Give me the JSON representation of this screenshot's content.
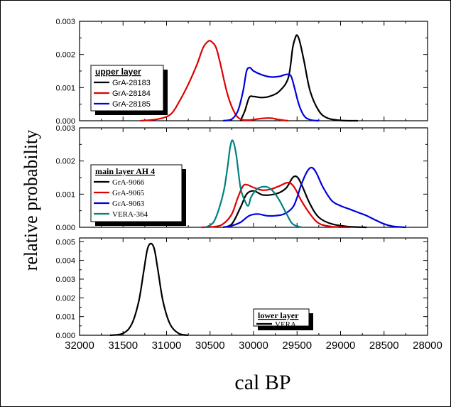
{
  "chart_data": [
    {
      "type": "line",
      "panel": "top",
      "xlim": [
        32000,
        28000
      ],
      "ylim": [
        0,
        0.003
      ],
      "yticks": [
        "0.000",
        "0.001",
        "0.002",
        "0.003"
      ],
      "legend": {
        "title": "upper layer",
        "placement": "top-left"
      },
      "series": [
        {
          "name": "GrA-28183",
          "color": "#000000",
          "points": [
            [
              30150,
              0
            ],
            [
              30100,
              0.0003
            ],
            [
              30050,
              0.0007
            ],
            [
              30000,
              0.00073
            ],
            [
              29900,
              0.0007
            ],
            [
              29800,
              0.00075
            ],
            [
              29700,
              0.0009
            ],
            [
              29600,
              0.0013
            ],
            [
              29550,
              0.0022
            ],
            [
              29520,
              0.0025
            ],
            [
              29500,
              0.00258
            ],
            [
              29470,
              0.0024
            ],
            [
              29420,
              0.0018
            ],
            [
              29350,
              0.0009
            ],
            [
              29250,
              0.0003
            ],
            [
              29150,
              8e-05
            ],
            [
              29000,
              1e-05
            ],
            [
              28800,
              0
            ]
          ]
        },
        {
          "name": "GrA-28184",
          "color": "#e00000",
          "points": [
            [
              31300,
              0
            ],
            [
              31100,
              5e-05
            ],
            [
              30950,
              0.0002
            ],
            [
              30850,
              0.0006
            ],
            [
              30750,
              0.0011
            ],
            [
              30650,
              0.0017
            ],
            [
              30580,
              0.0022
            ],
            [
              30520,
              0.0024
            ],
            [
              30480,
              0.00238
            ],
            [
              30430,
              0.0022
            ],
            [
              30380,
              0.0017
            ],
            [
              30300,
              0.0008
            ],
            [
              30220,
              0.00025
            ],
            [
              30150,
              5e-05
            ],
            [
              30050,
              2e-05
            ],
            [
              29900,
              7e-05
            ],
            [
              29800,
              8e-05
            ],
            [
              29700,
              3e-05
            ],
            [
              29600,
              0
            ]
          ]
        },
        {
          "name": "GrA-28185",
          "color": "#0000e0",
          "points": [
            [
              30350,
              0
            ],
            [
              30250,
              5e-05
            ],
            [
              30180,
              0.0003
            ],
            [
              30120,
              0.0009
            ],
            [
              30080,
              0.0015
            ],
            [
              30040,
              0.0016
            ],
            [
              30000,
              0.0015
            ],
            [
              29900,
              0.00138
            ],
            [
              29800,
              0.00132
            ],
            [
              29700,
              0.00134
            ],
            [
              29620,
              0.0014
            ],
            [
              29570,
              0.00135
            ],
            [
              29530,
              0.001
            ],
            [
              29480,
              0.0005
            ],
            [
              29420,
              0.00015
            ],
            [
              29350,
              3e-05
            ],
            [
              29250,
              0
            ]
          ]
        }
      ]
    },
    {
      "type": "line",
      "panel": "middle",
      "xlim": [
        32000,
        28000
      ],
      "ylim": [
        0,
        0.003
      ],
      "yticks": [
        "0.000",
        "0.001",
        "0.002",
        "0.003"
      ],
      "legend": {
        "title": "main layer AH 4",
        "placement": "top-left"
      },
      "series": [
        {
          "name": "GrA-9066",
          "color": "#000000",
          "points": [
            [
              30350,
              0
            ],
            [
              30250,
              0.0001
            ],
            [
              30150,
              0.0006
            ],
            [
              30080,
              0.001
            ],
            [
              30000,
              0.0011
            ],
            [
              29900,
              0.00098
            ],
            [
              29800,
              0.00098
            ],
            [
              29700,
              0.00105
            ],
            [
              29620,
              0.0012
            ],
            [
              29550,
              0.0015
            ],
            [
              29500,
              0.00152
            ],
            [
              29450,
              0.0013
            ],
            [
              29350,
              0.0007
            ],
            [
              29250,
              0.0003
            ],
            [
              29100,
              0.0001
            ],
            [
              28900,
              2e-05
            ],
            [
              28700,
              0
            ]
          ]
        },
        {
          "name": "GrA-9065",
          "color": "#e00000",
          "points": [
            [
              30600,
              0
            ],
            [
              30450,
              2e-05
            ],
            [
              30350,
              0.0001
            ],
            [
              30250,
              0.0004
            ],
            [
              30180,
              0.0009
            ],
            [
              30120,
              0.00125
            ],
            [
              30070,
              0.00128
            ],
            [
              30000,
              0.0012
            ],
            [
              29900,
              0.00112
            ],
            [
              29800,
              0.00115
            ],
            [
              29700,
              0.00125
            ],
            [
              29600,
              0.00135
            ],
            [
              29530,
              0.0012
            ],
            [
              29450,
              0.0008
            ],
            [
              29350,
              0.0004
            ],
            [
              29250,
              0.00012
            ],
            [
              29100,
              2e-05
            ],
            [
              28900,
              0
            ]
          ]
        },
        {
          "name": "GrA-9063",
          "color": "#0000e0",
          "points": [
            [
              30350,
              0
            ],
            [
              30250,
              5e-05
            ],
            [
              30150,
              0.00015
            ],
            [
              30050,
              0.00035
            ],
            [
              29950,
              0.0004
            ],
            [
              29850,
              0.00035
            ],
            [
              29750,
              0.00035
            ],
            [
              29650,
              0.0004
            ],
            [
              29550,
              0.0006
            ],
            [
              29500,
              0.0009
            ],
            [
              29450,
              0.0013
            ],
            [
              29380,
              0.0017
            ],
            [
              29330,
              0.0018
            ],
            [
              29280,
              0.00165
            ],
            [
              29200,
              0.0012
            ],
            [
              29100,
              0.0008
            ],
            [
              29000,
              0.00065
            ],
            [
              28900,
              0.00055
            ],
            [
              28800,
              0.00045
            ],
            [
              28700,
              0.00035
            ],
            [
              28600,
              0.00022
            ],
            [
              28500,
              0.0001
            ],
            [
              28400,
              3e-05
            ],
            [
              28250,
              0
            ]
          ]
        },
        {
          "name": "VERA-364",
          "color": "#008080",
          "points": [
            [
              30550,
              0
            ],
            [
              30450,
              0.0002
            ],
            [
              30350,
              0.001
            ],
            [
              30300,
              0.0018
            ],
            [
              30270,
              0.0024
            ],
            [
              30240,
              0.00262
            ],
            [
              30200,
              0.0022
            ],
            [
              30150,
              0.0012
            ],
            [
              30100,
              0.0008
            ],
            [
              30060,
              0.00065
            ],
            [
              30030,
              0.0009
            ],
            [
              29980,
              0.0011
            ],
            [
              29930,
              0.0012
            ],
            [
              29850,
              0.00122
            ],
            [
              29780,
              0.0011
            ],
            [
              29700,
              0.0008
            ],
            [
              29620,
              0.0004
            ],
            [
              29550,
              0.0001
            ],
            [
              29450,
              0
            ]
          ]
        }
      ]
    },
    {
      "type": "line",
      "panel": "bottom",
      "xlim": [
        32000,
        28000
      ],
      "ylim": [
        0,
        0.0052
      ],
      "yticks": [
        "0.000",
        "0.001",
        "0.002",
        "0.003",
        "0.004",
        "0.005"
      ],
      "legend": {
        "title": "lower layer",
        "placement": "bottom-right"
      },
      "series": [
        {
          "name": "VERA",
          "color": "#000000",
          "points": [
            [
              31650,
              0
            ],
            [
              31500,
              0.0001
            ],
            [
              31400,
              0.0006
            ],
            [
              31320,
              0.0018
            ],
            [
              31260,
              0.0035
            ],
            [
              31220,
              0.0046
            ],
            [
              31180,
              0.0049
            ],
            [
              31140,
              0.0046
            ],
            [
              31100,
              0.0035
            ],
            [
              31040,
              0.0018
            ],
            [
              30960,
              0.0006
            ],
            [
              30860,
              0.0001
            ],
            [
              30750,
              0
            ]
          ]
        }
      ]
    }
  ],
  "x_axis": {
    "ticks": [
      "32000",
      "31500",
      "31000",
      "30500",
      "30000",
      "29500",
      "29000",
      "28500",
      "28000"
    ],
    "label": "cal BP"
  },
  "y_axis": {
    "label": "relative probability"
  }
}
